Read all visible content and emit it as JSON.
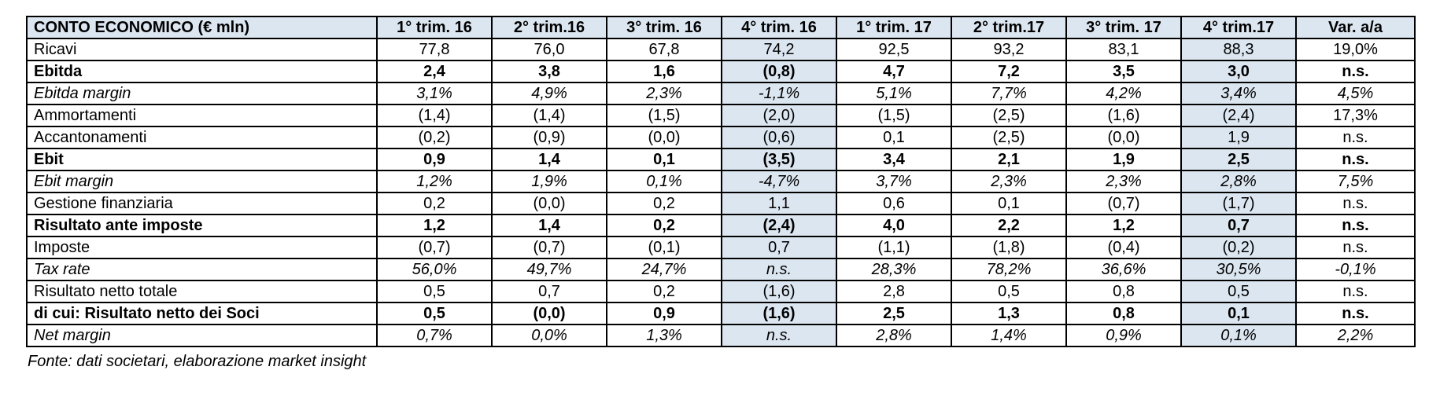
{
  "page": {
    "background": "#ffffff"
  },
  "table": {
    "title_column_header": "CONTO ECONOMICO (€ mln)",
    "columns": [
      "1° trim. 16",
      "2° trim.16",
      "3° trim. 16",
      "4° trim. 16",
      "1° trim. 17",
      "2° trim.17",
      "3° trim. 17",
      "4° trim.17",
      "Var. a/a"
    ],
    "shaded_value_columns": [
      3,
      7
    ],
    "colors": {
      "header_bg": "#dce6f1",
      "label_bg": "#dce6f1",
      "shaded_bg": "#dce6f1",
      "cell_bg": "#ffffff",
      "border": "#000000",
      "text": "#000000"
    },
    "rows": [
      {
        "label": "Ricavi",
        "style": "normal",
        "values": [
          "77,8",
          "76,0",
          "67,8",
          "74,2",
          "92,5",
          "93,2",
          "83,1",
          "88,3",
          "19,0%"
        ]
      },
      {
        "label": "Ebitda",
        "style": "bold",
        "values": [
          "2,4",
          "3,8",
          "1,6",
          "(0,8)",
          "4,7",
          "7,2",
          "3,5",
          "3,0",
          "n.s."
        ]
      },
      {
        "label": "Ebitda margin",
        "style": "italic",
        "values": [
          "3,1%",
          "4,9%",
          "2,3%",
          "-1,1%",
          "5,1%",
          "7,7%",
          "4,2%",
          "3,4%",
          "4,5%"
        ]
      },
      {
        "label": "Ammortamenti",
        "style": "normal",
        "values": [
          "(1,4)",
          "(1,4)",
          "(1,5)",
          "(2,0)",
          "(1,5)",
          "(2,5)",
          "(1,6)",
          "(2,4)",
          "17,3%"
        ]
      },
      {
        "label": "Accantonamenti",
        "style": "normal",
        "values": [
          "(0,2)",
          "(0,9)",
          "(0,0)",
          "(0,6)",
          "0,1",
          "(2,5)",
          "(0,0)",
          "1,9",
          "n.s."
        ]
      },
      {
        "label": "Ebit",
        "style": "bold",
        "values": [
          "0,9",
          "1,4",
          "0,1",
          "(3,5)",
          "3,4",
          "2,1",
          "1,9",
          "2,5",
          "n.s."
        ]
      },
      {
        "label": "Ebit margin",
        "style": "italic",
        "values": [
          "1,2%",
          "1,9%",
          "0,1%",
          "-4,7%",
          "3,7%",
          "2,3%",
          "2,3%",
          "2,8%",
          "7,5%"
        ]
      },
      {
        "label": "Gestione finanziaria",
        "style": "normal",
        "values": [
          "0,2",
          "(0,0)",
          "0,2",
          "1,1",
          "0,6",
          "0,1",
          "(0,7)",
          "(1,7)",
          "n.s."
        ]
      },
      {
        "label": "Risultato ante imposte",
        "style": "bold",
        "values": [
          "1,2",
          "1,4",
          "0,2",
          "(2,4)",
          "4,0",
          "2,2",
          "1,2",
          "0,7",
          "n.s."
        ]
      },
      {
        "label": "Imposte",
        "style": "normal",
        "values": [
          "(0,7)",
          "(0,7)",
          "(0,1)",
          "0,7",
          "(1,1)",
          "(1,8)",
          "(0,4)",
          "(0,2)",
          "n.s."
        ]
      },
      {
        "label": "Tax rate",
        "style": "italic",
        "values": [
          "56,0%",
          "49,7%",
          "24,7%",
          "n.s.",
          "28,3%",
          "78,2%",
          "36,6%",
          "30,5%",
          "-0,1%"
        ]
      },
      {
        "label": "Risultato netto totale",
        "style": "normal",
        "values": [
          "0,5",
          "0,7",
          "0,2",
          "(1,6)",
          "2,8",
          "0,5",
          "0,8",
          "0,5",
          "n.s."
        ]
      },
      {
        "label": "di cui: Risultato netto dei Soci",
        "style": "bold",
        "values": [
          "0,5",
          "(0,0)",
          "0,9",
          "(1,6)",
          "2,5",
          "1,3",
          "0,8",
          "0,1",
          "n.s."
        ]
      },
      {
        "label": "Net margin",
        "style": "italic",
        "values": [
          "0,7%",
          "0,0%",
          "1,3%",
          "n.s.",
          "2,8%",
          "1,4%",
          "0,9%",
          "0,1%",
          "2,2%"
        ]
      }
    ]
  },
  "footer": {
    "source_note": "Fonte: dati societari, elaborazione market insight"
  }
}
